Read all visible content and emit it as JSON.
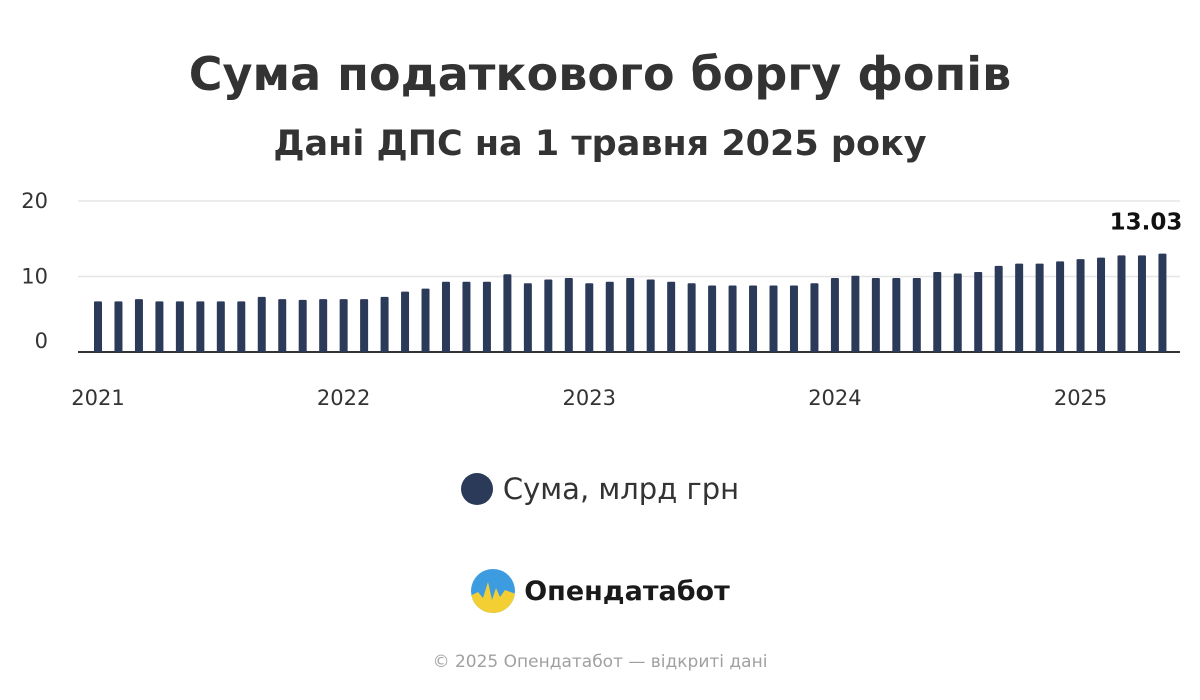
{
  "title": "Сума податкового боргу фопів",
  "subtitle": "Дані ДПС на 1 травня 2025 року",
  "legend": {
    "label": "Сума, млрд грн",
    "color": "#2c3a5a"
  },
  "brand": {
    "name": "Опендатабот",
    "logo": "opendatabot-logo"
  },
  "footer": "© 2025 Опендатабот — відкриті дані",
  "chart_data": {
    "type": "bar",
    "series": [
      {
        "name": "Сума, млрд грн",
        "color": "#2c3a5a",
        "values": [
          6.7,
          6.7,
          7.0,
          6.7,
          6.7,
          6.7,
          6.7,
          6.7,
          7.3,
          7.0,
          6.9,
          7.0,
          7.0,
          7.0,
          7.3,
          8.0,
          8.4,
          9.3,
          9.3,
          9.3,
          10.3,
          9.1,
          9.6,
          9.8,
          9.1,
          9.3,
          9.8,
          9.6,
          9.3,
          9.1,
          8.8,
          8.8,
          8.8,
          8.8,
          8.8,
          9.1,
          9.8,
          10.1,
          9.8,
          9.8,
          9.8,
          10.6,
          10.4,
          10.6,
          11.4,
          11.7,
          11.7,
          12.0,
          12.3,
          12.5,
          12.8,
          12.8,
          13.03
        ]
      }
    ],
    "x_start": "2021-01",
    "x_interval": "month",
    "x_ticks": [
      "2021",
      "2022",
      "2023",
      "2024",
      "2025"
    ],
    "y_ticks": [
      "0",
      "10",
      "20"
    ],
    "ylim": [
      0,
      20
    ],
    "data_label": {
      "text": "13.03"
    },
    "grid": true,
    "legend_position": "bottom"
  }
}
